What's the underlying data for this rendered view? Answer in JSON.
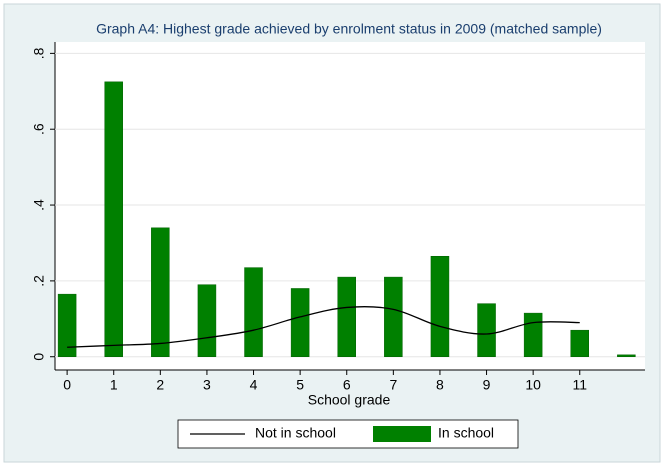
{
  "chart_data": {
    "type": "bar-line",
    "title": "Graph A4: Highest grade achieved by enrolment status in 2009 (matched sample)",
    "x_label": "School grade",
    "x": [
      0,
      1,
      2,
      3,
      4,
      5,
      6,
      7,
      8,
      9,
      10,
      11,
      12
    ],
    "series": [
      {
        "name": "Not in school",
        "type": "line",
        "color": "#000000",
        "values": [
          0.025,
          0.03,
          0.035,
          0.05,
          0.07,
          0.105,
          0.13,
          0.125,
          0.08,
          0.06,
          0.09,
          0.09,
          null
        ]
      },
      {
        "name": "In school",
        "type": "bar",
        "color": "#008000",
        "values": [
          0.165,
          0.725,
          0.34,
          0.19,
          0.235,
          0.18,
          0.21,
          0.21,
          0.265,
          0.14,
          0.115,
          0.07,
          0.005
        ]
      }
    ],
    "xlim": [
      -0.26,
      12.4
    ],
    "xticks": [
      0,
      1,
      2,
      3,
      4,
      5,
      6,
      7,
      8,
      9,
      10,
      11
    ],
    "ylim": [
      -0.035,
      0.83
    ],
    "yticks": [
      0,
      {
        "value": 0.2,
        "label": ".2"
      },
      {
        "value": 0.4,
        "label": ".4"
      },
      {
        "value": 0.6,
        "label": ".6"
      },
      {
        "value": 0.8,
        "label": ".8"
      }
    ],
    "grid": true
  }
}
